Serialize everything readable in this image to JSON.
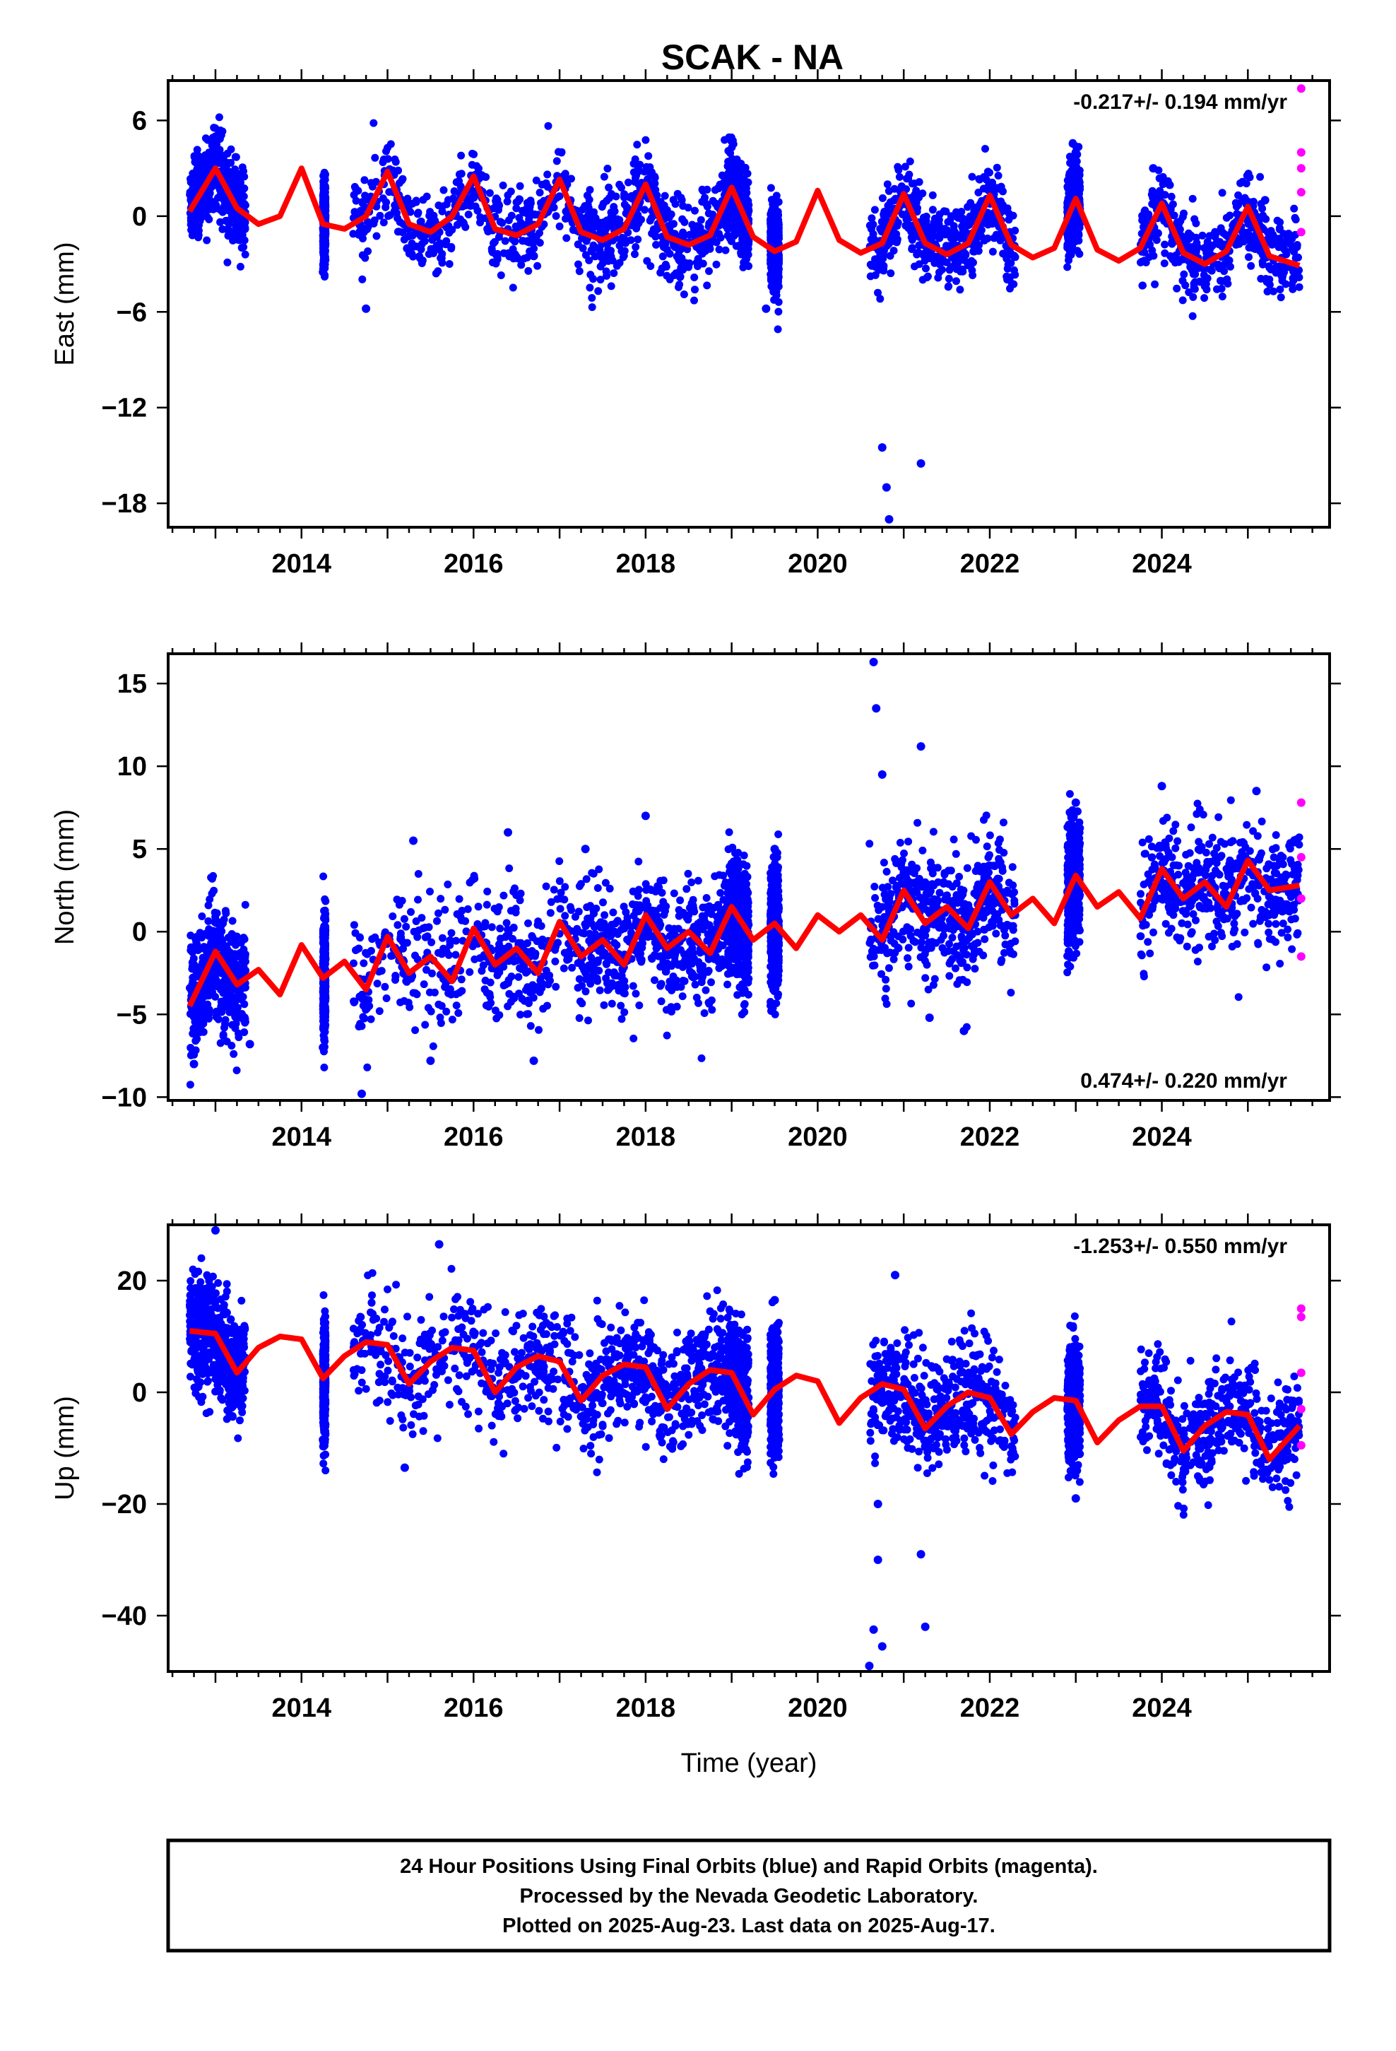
{
  "title": "SCAK - NA",
  "colors": {
    "final": "#0000ff",
    "rapid": "#ff00ff",
    "model": "#ff0000",
    "frame": "#000000"
  },
  "footer": {
    "lines": [
      "24 Hour Positions Using Final Orbits (blue) and Rapid Orbits (magenta).",
      "Processed by the Nevada Geodetic Laboratory.",
      "Plotted on 2025-Aug-23. Last data on 2025-Aug-17."
    ]
  },
  "chart_data": [
    {
      "type": "scatter",
      "component": "East",
      "ylabel": "East (mm)",
      "xlabel": "",
      "xlim": [
        2012.45,
        2025.95
      ],
      "ylim": [
        -19.5,
        8.5
      ],
      "xticks": [
        2014,
        2016,
        2018,
        2020,
        2022,
        2024
      ],
      "yticks": [
        6,
        0,
        -6,
        -12,
        -18
      ],
      "ytick_labels": [
        "6",
        "0",
        "−6",
        "−12",
        "−18"
      ],
      "rate_label": "-0.217+/- 0.194 mm/yr",
      "rate_label_position": "top-right",
      "model": {
        "name": "",
        "color": "#ff0000",
        "x": [
          2012.7,
          2013.0,
          2013.25,
          2013.5,
          2013.75,
          2014.0,
          2014.25,
          2014.5,
          2014.75,
          2015.0,
          2015.25,
          2015.5,
          2015.75,
          2016.0,
          2016.25,
          2016.5,
          2016.75,
          2017.0,
          2017.25,
          2017.5,
          2017.75,
          2018.0,
          2018.25,
          2018.5,
          2018.75,
          2019.0,
          2019.25,
          2019.5,
          2019.75,
          2020.0,
          2020.25,
          2020.5,
          2020.75,
          2021.0,
          2021.25,
          2021.5,
          2021.75,
          2022.0,
          2022.25,
          2022.5,
          2022.75,
          2023.0,
          2023.25,
          2023.5,
          2023.75,
          2024.0,
          2024.25,
          2024.5,
          2024.75,
          2025.0,
          2025.25,
          2025.6
        ],
        "y": [
          0.3,
          3.0,
          0.5,
          -0.5,
          0.0,
          3.0,
          -0.5,
          -0.8,
          0.0,
          2.8,
          -0.5,
          -1.0,
          0.0,
          2.5,
          -0.8,
          -1.2,
          -0.5,
          2.3,
          -1.0,
          -1.5,
          -0.8,
          2.0,
          -1.3,
          -1.8,
          -1.2,
          1.8,
          -1.3,
          -2.2,
          -1.6,
          1.6,
          -1.5,
          -2.3,
          -1.7,
          1.4,
          -1.7,
          -2.4,
          -1.7,
          1.3,
          -1.8,
          -2.6,
          -2.0,
          1.1,
          -2.1,
          -2.8,
          -2.0,
          0.8,
          -2.3,
          -3.0,
          -2.2,
          0.6,
          -2.5,
          -3.1
        ]
      },
      "series": [
        {
          "name": "",
          "color": "#0000ff",
          "x": [
            2012.9,
            2013.3,
            2014.25,
            2014.75,
            2015.6,
            2016.7,
            2018.4,
            2019.4,
            2020.75,
            2020.8,
            2020.83,
            2021.2,
            2022.0,
            2023.0,
            2023.9,
            2024.5,
            2025.2
          ],
          "y": [
            2.0,
            1.0,
            -3.5,
            -5.8,
            -1.0,
            -2.5,
            -3.8,
            -5.8,
            -14.5,
            -17.0,
            -19.0,
            -15.5,
            2.0,
            4.0,
            3.0,
            -2.0,
            1.0
          ]
        },
        {
          "name": "",
          "color": "#ff00ff",
          "x": [
            2025.62,
            2025.62,
            2025.62,
            2025.62,
            2025.62
          ],
          "y": [
            8.0,
            4.0,
            3.0,
            1.5,
            -1.0
          ]
        }
      ]
    },
    {
      "type": "scatter",
      "component": "North",
      "ylabel": "North (mm)",
      "xlabel": "",
      "xlim": [
        2012.45,
        2025.95
      ],
      "ylim": [
        -10.2,
        16.8
      ],
      "xticks": [
        2014,
        2016,
        2018,
        2020,
        2022,
        2024
      ],
      "yticks": [
        15,
        10,
        5,
        0,
        -5,
        -10
      ],
      "ytick_labels": [
        "15",
        "10",
        "5",
        "0",
        "−5",
        "−10"
      ],
      "rate_label": "0.474+/- 0.220 mm/yr",
      "rate_label_position": "bottom-right",
      "model": {
        "name": "",
        "color": "#ff0000",
        "x": [
          2012.7,
          2013.0,
          2013.25,
          2013.5,
          2013.75,
          2014.0,
          2014.25,
          2014.5,
          2014.75,
          2015.0,
          2015.25,
          2015.5,
          2015.75,
          2016.0,
          2016.25,
          2016.5,
          2016.75,
          2017.0,
          2017.25,
          2017.5,
          2017.75,
          2018.0,
          2018.25,
          2018.5,
          2018.75,
          2019.0,
          2019.25,
          2019.5,
          2019.75,
          2020.0,
          2020.25,
          2020.5,
          2020.75,
          2021.0,
          2021.25,
          2021.5,
          2021.75,
          2022.0,
          2022.25,
          2022.5,
          2022.75,
          2023.0,
          2023.25,
          2023.5,
          2023.75,
          2024.0,
          2024.25,
          2024.5,
          2024.75,
          2025.0,
          2025.25,
          2025.6
        ],
        "y": [
          -4.5,
          -1.2,
          -3.2,
          -2.3,
          -3.8,
          -0.8,
          -2.8,
          -1.8,
          -3.5,
          -0.3,
          -2.5,
          -1.5,
          -3.0,
          0.2,
          -2.0,
          -1.0,
          -2.5,
          0.6,
          -1.5,
          -0.5,
          -2.0,
          1.0,
          -1.0,
          0.0,
          -1.3,
          1.5,
          -0.5,
          0.5,
          -1.0,
          1.0,
          0.0,
          1.0,
          -0.5,
          2.5,
          0.5,
          1.5,
          0.2,
          3.0,
          1.0,
          2.0,
          0.5,
          3.4,
          1.5,
          2.4,
          0.8,
          3.8,
          2.0,
          3.0,
          1.5,
          4.3,
          2.5,
          2.8
        ]
      },
      "series": [
        {
          "name": "",
          "color": "#0000ff",
          "x": [
            2012.75,
            2013.4,
            2014.25,
            2014.7,
            2015.3,
            2015.5,
            2016.4,
            2016.7,
            2017.3,
            2018.0,
            2019.5,
            2020.65,
            2020.68,
            2020.75,
            2021.2,
            2021.3,
            2021.7,
            2023.0,
            2024.0,
            2025.1
          ],
          "y": [
            -8.0,
            -6.8,
            -7.0,
            -9.8,
            5.5,
            -7.8,
            6.0,
            -7.8,
            5.0,
            7.0,
            5.0,
            16.3,
            13.5,
            9.5,
            11.2,
            -5.2,
            -6.0,
            7.8,
            8.8,
            8.5
          ]
        },
        {
          "name": "",
          "color": "#ff00ff",
          "x": [
            2025.62,
            2025.62,
            2025.62,
            2025.62
          ],
          "y": [
            7.8,
            4.5,
            2.0,
            -1.5
          ]
        }
      ]
    },
    {
      "type": "scatter",
      "component": "Up",
      "ylabel": "Up (mm)",
      "xlabel": "Time (year)",
      "xlim": [
        2012.45,
        2025.95
      ],
      "ylim": [
        -50,
        30
      ],
      "xticks": [
        2014,
        2016,
        2018,
        2020,
        2022,
        2024
      ],
      "yticks": [
        20,
        0,
        -20,
        -40
      ],
      "ytick_labels": [
        "20",
        "0",
        "−20",
        "−40"
      ],
      "rate_label": "-1.253+/- 0.550 mm/yr",
      "rate_label_position": "top-right",
      "model": {
        "name": "",
        "color": "#ff0000",
        "x": [
          2012.7,
          2013.0,
          2013.25,
          2013.5,
          2013.75,
          2014.0,
          2014.25,
          2014.5,
          2014.75,
          2015.0,
          2015.25,
          2015.5,
          2015.75,
          2016.0,
          2016.25,
          2016.5,
          2016.75,
          2017.0,
          2017.25,
          2017.5,
          2017.75,
          2018.0,
          2018.25,
          2018.5,
          2018.75,
          2019.0,
          2019.25,
          2019.5,
          2019.75,
          2020.0,
          2020.25,
          2020.5,
          2020.75,
          2021.0,
          2021.25,
          2021.5,
          2021.75,
          2022.0,
          2022.25,
          2022.5,
          2022.75,
          2023.0,
          2023.25,
          2023.5,
          2023.75,
          2024.0,
          2024.25,
          2024.5,
          2024.75,
          2025.0,
          2025.25,
          2025.6
        ],
        "y": [
          11.0,
          10.5,
          3.5,
          8.0,
          10.0,
          9.5,
          2.5,
          6.5,
          9.0,
          8.5,
          1.5,
          5.5,
          8.0,
          7.5,
          0.0,
          4.5,
          6.5,
          5.5,
          -1.5,
          3.0,
          5.0,
          4.5,
          -3.0,
          1.5,
          4.0,
          3.5,
          -4.0,
          0.5,
          3.0,
          2.0,
          -5.5,
          -1.0,
          1.5,
          0.5,
          -6.5,
          -2.5,
          0.0,
          -1.0,
          -7.5,
          -3.5,
          -1.0,
          -1.5,
          -9.0,
          -5.0,
          -2.5,
          -2.5,
          -10.5,
          -6.0,
          -3.5,
          -4.0,
          -12.0,
          -6.0
        ]
      },
      "series": [
        {
          "name": "",
          "color": "#0000ff",
          "x": [
            2012.8,
            2013.0,
            2014.25,
            2015.2,
            2015.6,
            2019.5,
            2019.55,
            2020.6,
            2020.65,
            2020.7,
            2020.7,
            2020.75,
            2020.9,
            2021.2,
            2021.25,
            2023.0,
            2023.0
          ],
          "y": [
            1.0,
            29.0,
            -8.5,
            -13.5,
            26.5,
            16.5,
            -8.5,
            -49.0,
            -42.5,
            -30.0,
            -20.0,
            -45.5,
            21.0,
            -29.0,
            -42.0,
            6.0,
            -19.0
          ]
        },
        {
          "name": "",
          "color": "#ff00ff",
          "x": [
            2025.62,
            2025.62,
            2025.62,
            2025.62,
            2025.62
          ],
          "y": [
            15.0,
            13.5,
            3.5,
            -3.0,
            -9.5
          ]
        }
      ]
    }
  ]
}
